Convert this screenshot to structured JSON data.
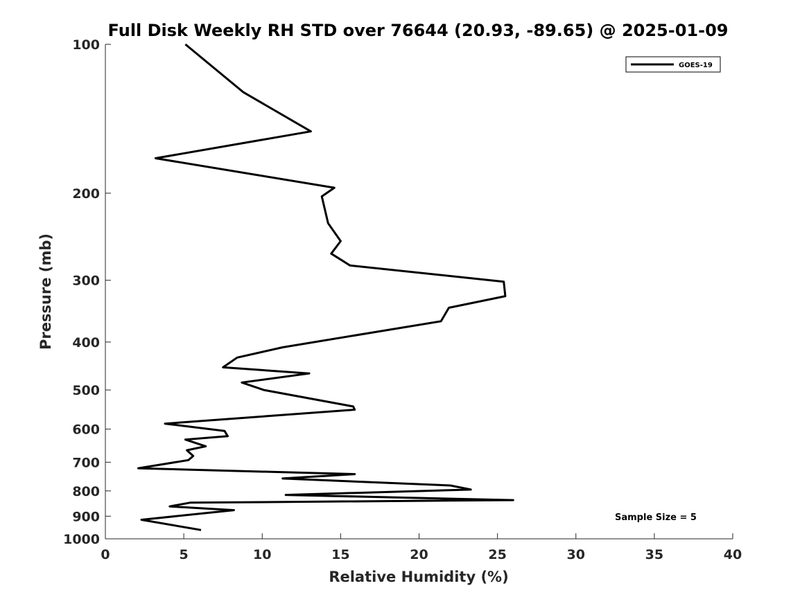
{
  "chart_data": {
    "type": "line",
    "title": "Full Disk Weekly RH STD over 76644 (20.93, -89.65) @ 2025-01-09",
    "xlabel": "Relative Humidity (%)",
    "ylabel": "Pressure (mb)",
    "xlim": [
      0,
      40
    ],
    "ylim": [
      100,
      1000
    ],
    "yscale": "log",
    "y_reversed": true,
    "xticks": [
      0,
      5,
      10,
      15,
      20,
      25,
      30,
      35,
      40
    ],
    "yticks": [
      100,
      200,
      300,
      400,
      500,
      600,
      700,
      800,
      900,
      1000
    ],
    "legend": {
      "position": "top-right",
      "entries": [
        "GOES-19"
      ]
    },
    "annotation": "Sample Size = 5",
    "series": [
      {
        "name": "GOES-19",
        "color": "#000000",
        "x": [
          5.1,
          8.8,
          13.1,
          3.2,
          14.6,
          13.8,
          14.2,
          15.0,
          14.4,
          15.6,
          25.4,
          25.5,
          21.9,
          21.4,
          11.3,
          8.4,
          7.5,
          13.0,
          8.7,
          10.1,
          15.8,
          15.9,
          3.8,
          7.6,
          7.8,
          5.1,
          6.4,
          5.2,
          5.6,
          5.3,
          2.1,
          15.9,
          11.3,
          22.0,
          23.3,
          11.5,
          26.0,
          5.4,
          4.1,
          8.2,
          2.3,
          6.1
        ],
        "y": [
          100,
          125,
          150,
          170,
          195,
          203,
          230,
          250,
          265,
          280,
          302,
          323,
          341,
          363,
          410,
          430,
          450,
          463,
          483,
          500,
          540,
          548,
          585,
          605,
          620,
          630,
          650,
          662,
          680,
          693,
          720,
          740,
          755,
          780,
          795,
          815,
          835,
          845,
          860,
          875,
          915,
          960
        ]
      }
    ]
  }
}
